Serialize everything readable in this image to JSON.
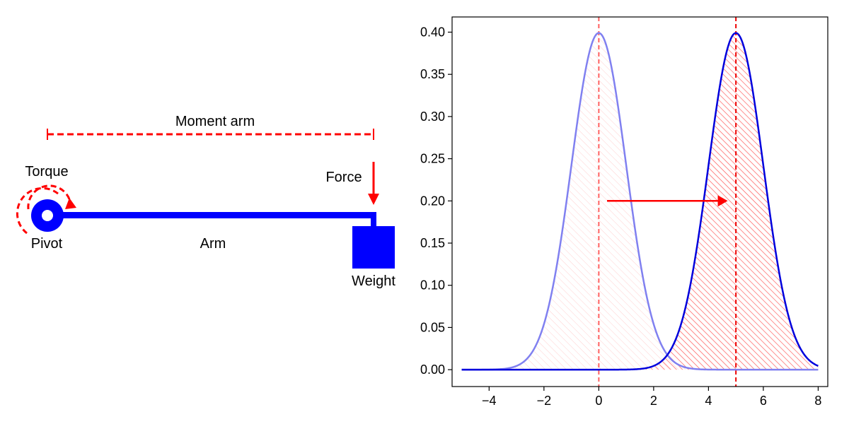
{
  "diagram": {
    "moment_arm_label": "Moment arm",
    "torque_label": "Torque",
    "force_label": "Force",
    "pivot_label": "Pivot",
    "arm_label": "Arm",
    "weight_label": "Weight",
    "colors": {
      "structure": "#0000ff",
      "annotation": "#ff0000",
      "pivot_core": "#ffffff"
    }
  },
  "chart_data": {
    "type": "area",
    "title": "",
    "xlabel": "",
    "ylabel": "",
    "xlim": [
      -5.35,
      8.35
    ],
    "ylim": [
      -0.02,
      0.418
    ],
    "x_ticks": [
      -4,
      -2,
      0,
      2,
      4,
      6,
      8
    ],
    "x_tick_labels": [
      "−4",
      "−2",
      "0",
      "2",
      "4",
      "6",
      "8"
    ],
    "y_ticks": [
      0.0,
      0.05,
      0.1,
      0.15,
      0.2,
      0.25,
      0.3,
      0.35,
      0.4
    ],
    "y_tick_labels": [
      "0.00",
      "0.05",
      "0.10",
      "0.15",
      "0.20",
      "0.25",
      "0.30",
      "0.35",
      "0.40"
    ],
    "grid": false,
    "legend": "none",
    "x_range": [
      -5,
      8
    ],
    "series": [
      {
        "kind": "normal_pdf",
        "mean": 0,
        "sd": 1,
        "peak": 0.399,
        "color": "#8080f0",
        "fill_color": "#ffb0b0",
        "hatch": "light"
      },
      {
        "kind": "normal_pdf",
        "mean": 5,
        "sd": 1,
        "peak": 0.399,
        "color": "#0000dd",
        "fill_color": "#ff4040",
        "hatch": "dense"
      }
    ],
    "vlines": [
      {
        "x": 0,
        "color": "#ff6060"
      },
      {
        "x": 5,
        "color": "#ee0000"
      }
    ],
    "arrow": {
      "from": [
        0.3,
        0.2
      ],
      "to": [
        4.7,
        0.2
      ],
      "color": "#ff0000"
    }
  }
}
